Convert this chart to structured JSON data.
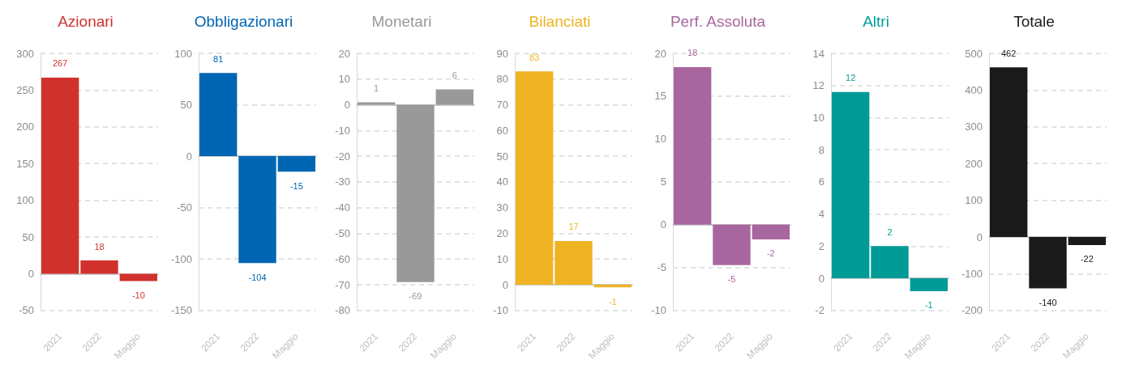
{
  "chart_data": [
    {
      "type": "bar",
      "title": "Azionari",
      "categories": [
        "2021",
        "2022",
        "Maggio"
      ],
      "values": [
        267,
        18,
        -10
      ],
      "color": "#d0312d",
      "value_labels": [
        "267",
        "18",
        "-10"
      ],
      "ylim": [
        -50,
        300
      ],
      "yticks": [
        -50,
        0,
        50,
        100,
        150,
        200,
        250,
        300
      ],
      "grid": "y"
    },
    {
      "type": "bar",
      "title": "Obbligazionari",
      "categories": [
        "2021",
        "2022",
        "Maggio"
      ],
      "values": [
        81,
        -104,
        -15
      ],
      "color": "#0066b3",
      "value_labels": [
        "81",
        "-104",
        "-15"
      ],
      "ylim": [
        -150,
        100
      ],
      "yticks": [
        -150,
        -100,
        -50,
        0,
        50,
        100
      ],
      "grid": "y"
    },
    {
      "type": "bar",
      "title": "Monetari",
      "categories": [
        "2021",
        "2022",
        "Maggio"
      ],
      "values": [
        1,
        -69,
        6
      ],
      "color": "#999999",
      "value_labels": [
        "1",
        "-69",
        "6"
      ],
      "ylim": [
        -80,
        20
      ],
      "yticks": [
        -80,
        -70,
        -60,
        -50,
        -40,
        -30,
        -20,
        -10,
        0,
        10,
        20
      ],
      "grid": "y"
    },
    {
      "type": "bar",
      "title": "Bilanciati",
      "categories": [
        "2021",
        "2022",
        "Maggio"
      ],
      "values": [
        83,
        17,
        -1
      ],
      "color": "#f0b323",
      "value_labels": [
        "83",
        "17",
        "-1"
      ],
      "ylim": [
        -10,
        90
      ],
      "yticks": [
        -10,
        0,
        10,
        20,
        30,
        40,
        50,
        60,
        70,
        80,
        90
      ],
      "grid": "y"
    },
    {
      "type": "bar",
      "title": "Perf. Assoluta",
      "categories": [
        "2021",
        "2022",
        "Maggio"
      ],
      "values": [
        18.4,
        -4.7,
        -1.7
      ],
      "color": "#a8669e",
      "value_labels": [
        "18",
        "-5",
        "-2"
      ],
      "ylim": [
        -10,
        20
      ],
      "yticks": [
        -10,
        -5,
        0,
        5,
        10,
        15,
        20
      ],
      "grid": "y"
    },
    {
      "type": "bar",
      "title": "Altri",
      "categories": [
        "2021",
        "2022",
        "Maggio"
      ],
      "values": [
        11.6,
        2,
        -0.8
      ],
      "color": "#009b96",
      "value_labels": [
        "12",
        "2",
        "-1"
      ],
      "ylim": [
        -2,
        14
      ],
      "yticks": [
        -2,
        0,
        2,
        4,
        6,
        8,
        10,
        12,
        14
      ],
      "grid": "y"
    },
    {
      "type": "bar",
      "title": "Totale",
      "categories": [
        "2021",
        "2022",
        "Maggio"
      ],
      "values": [
        462,
        -140,
        -22
      ],
      "color": "#1a1a1a",
      "value_labels": [
        "462",
        "-140",
        "-22"
      ],
      "ylim": [
        -200,
        500
      ],
      "yticks": [
        -200,
        -100,
        0,
        100,
        200,
        300,
        400,
        500
      ],
      "grid": "y"
    }
  ]
}
